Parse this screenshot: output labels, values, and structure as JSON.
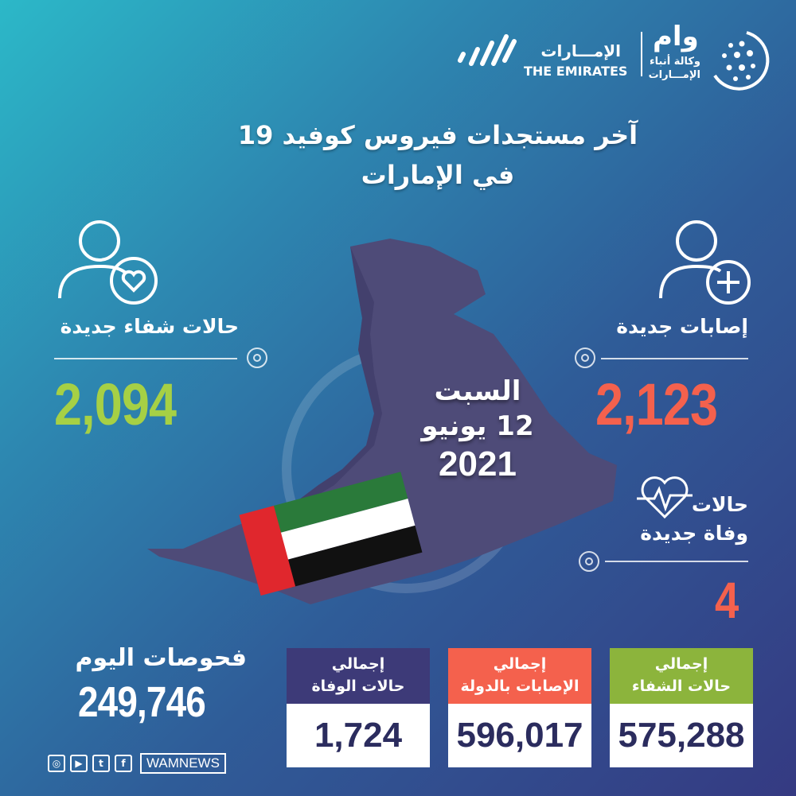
{
  "logos": {
    "emirates_ar": "الإمـــارات",
    "emirates_en": "THE EMIRATES",
    "wam_ar": "وام",
    "wam_sub1": "وكالة أنباء",
    "wam_sub2": "الإمـــارات"
  },
  "title": {
    "line1": "آخر مستجدات فيروس كوفيد 19",
    "line2": "في الإمارات"
  },
  "recoveries": {
    "label": "حالات شفاء جديدة",
    "value": "2,094",
    "icon": "person-heart-icon"
  },
  "new_cases": {
    "label": "إصابات جديدة",
    "value": "2,123",
    "icon": "person-plus-icon"
  },
  "deaths": {
    "label1": "حالات",
    "label2": "وفاة جديدة",
    "value": "4",
    "icon": "heartbeat-icon"
  },
  "date": {
    "day": "السبت",
    "date": "12 يونيو",
    "year": "2021"
  },
  "tests": {
    "label": "فحوصات اليوم",
    "value": "249,746"
  },
  "totals": [
    {
      "title1": "إجمالي",
      "title2": "حالات الوفاة",
      "value": "1,724",
      "color": "#3d3a78"
    },
    {
      "title1": "إجمالي",
      "title2": "الإصابات بالدولة",
      "value": "596,017",
      "color": "#f4614d"
    },
    {
      "title1": "إجمالي",
      "title2": "حالات الشفاء",
      "value": "575,288",
      "color": "#8cb43c"
    }
  ],
  "social": {
    "handle": "WAMNEWS",
    "icons": [
      "instagram-icon",
      "youtube-icon",
      "twitter-icon",
      "facebook-icon"
    ]
  },
  "colors": {
    "green": "#a6d045",
    "red": "#f4614d",
    "purple": "#3d3a78",
    "map": "#4e4b78"
  }
}
